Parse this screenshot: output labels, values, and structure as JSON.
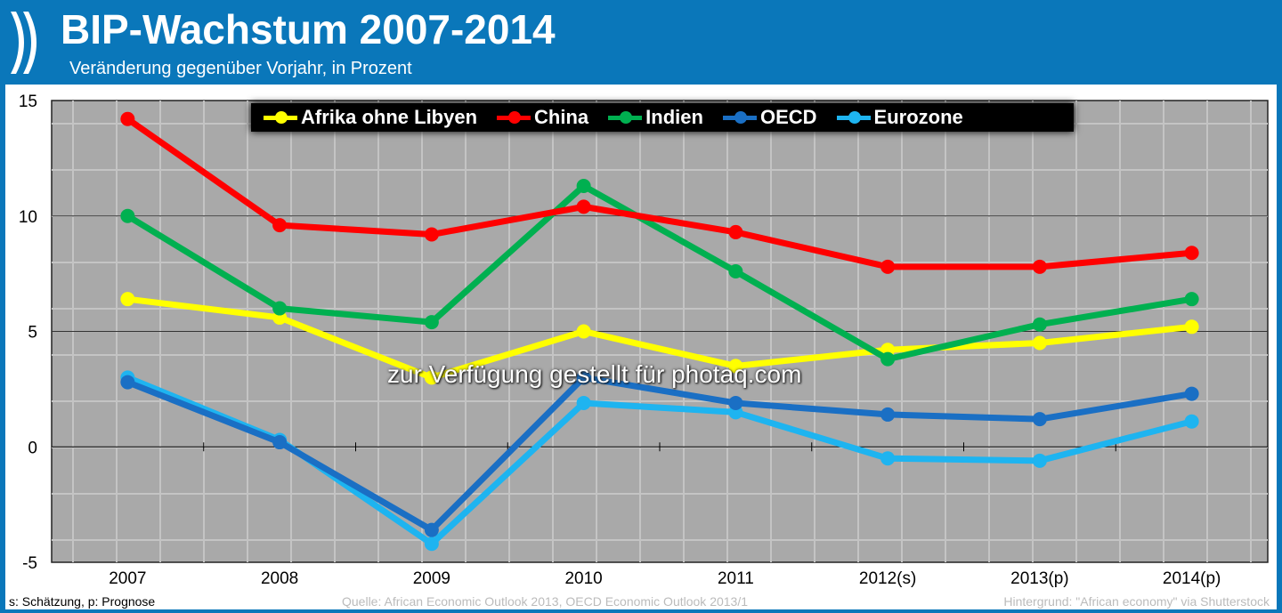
{
  "header": {
    "title": "BIP-Wachstum 2007-2014",
    "subtitle": "Veränderung gegenüber Vorjahr, in Prozent"
  },
  "footer": {
    "note": "s: Schätzung, p: Prognose",
    "source": "Quelle: African Economic Outlook 2013,  OECD Economic Outlook 2013/1",
    "background": "Hintergrund: \"African economy\" via Shutterstock"
  },
  "watermark": "zur Verfügung gestellt für photaq.com",
  "chart_data": {
    "type": "line",
    "title": "BIP-Wachstum 2007-2014",
    "ylabel": "Veränderung gegenüber Vorjahr, in Prozent",
    "categories": [
      "2007",
      "2008",
      "2009",
      "2010",
      "2011",
      "2012(s)",
      "2013(p)",
      "2014(p)"
    ],
    "ylim": [
      -5,
      15
    ],
    "yticks": [
      -5,
      0,
      5,
      10,
      15
    ],
    "legend_position": "top-center",
    "series": [
      {
        "name": "Afrika ohne Libyen",
        "color": "#ffff00",
        "values": [
          6.4,
          5.6,
          3.0,
          5.0,
          3.5,
          4.2,
          4.5,
          5.2
        ]
      },
      {
        "name": "China",
        "color": "#ff0000",
        "values": [
          14.2,
          9.6,
          9.2,
          10.4,
          9.3,
          7.8,
          7.8,
          8.4
        ]
      },
      {
        "name": "Indien",
        "color": "#00b050",
        "values": [
          10.0,
          6.0,
          5.4,
          11.3,
          7.6,
          3.8,
          5.3,
          6.4
        ]
      },
      {
        "name": "OECD",
        "color": "#1a6fc4",
        "values": [
          2.8,
          0.2,
          -3.6,
          3.0,
          1.9,
          1.4,
          1.2,
          2.3
        ]
      },
      {
        "name": "Eurozone",
        "color": "#1eb4f0",
        "values": [
          3.0,
          0.3,
          -4.2,
          1.9,
          1.5,
          -0.5,
          -0.6,
          1.1
        ]
      }
    ]
  }
}
